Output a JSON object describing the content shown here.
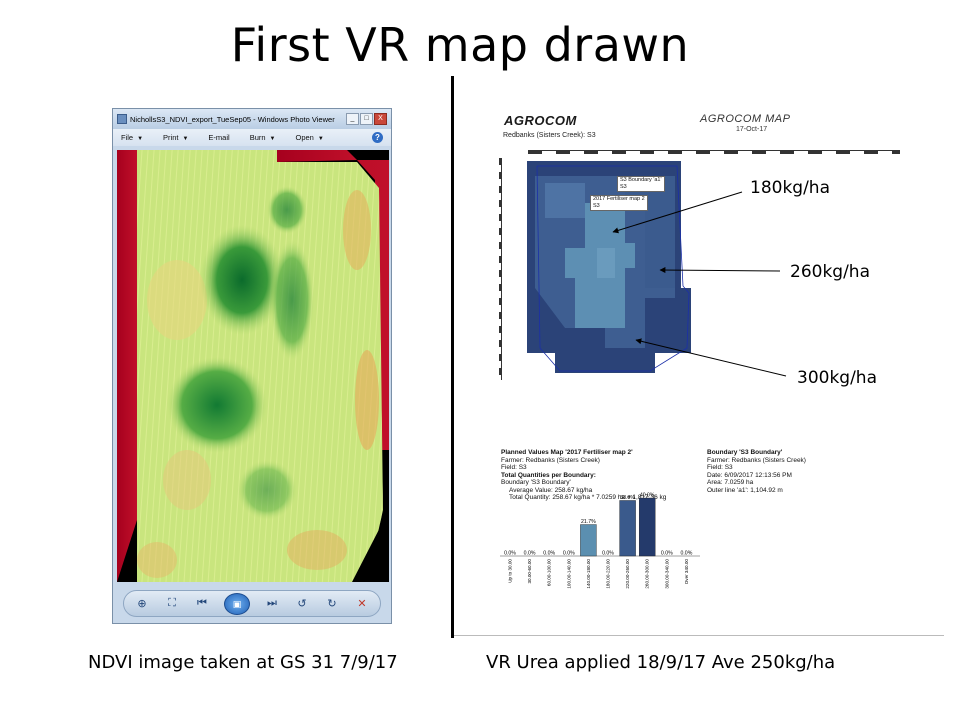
{
  "slide": {
    "title": "First VR map drawn",
    "caption_left": "NDVI image taken at GS 31  7/9/17",
    "caption_right": "VR Urea applied 18/9/17 Ave 250kg/ha"
  },
  "viewer": {
    "window_title": "NichollsS3_NDVI_export_TueSep05 - Windows Photo Viewer",
    "window_buttons": [
      "_",
      "□",
      "X"
    ],
    "menu": [
      {
        "label": "File",
        "has_arrow": true
      },
      {
        "label": "Print",
        "has_arrow": true
      },
      {
        "label": "E-mail",
        "has_arrow": false
      },
      {
        "label": "Burn",
        "has_arrow": true
      },
      {
        "label": "Open",
        "has_arrow": true
      }
    ],
    "help_label": "?",
    "controls": [
      "zoom-icon",
      "fit-icon",
      "previous-icon",
      "slideshow-icon",
      "next-icon",
      "rotate-left-icon",
      "rotate-right-icon",
      "delete-icon"
    ]
  },
  "agrocom": {
    "logo": "AGROCOM",
    "map_title": "AGROCOM MAP",
    "date": "17-Oct-17",
    "field_line": "Redbanks (Sisters Creek): S3",
    "tag_boundary": "S3 Boundary 'a1'",
    "tag_boundary_sub": "S3",
    "tag_fert": "2017 Fertiliser map 2",
    "tag_fert_sub": "S3",
    "colors": {
      "low": "#5b8fb0",
      "mid": "#3a5a8c",
      "high": "#243a6b",
      "bg": "#ffffff"
    }
  },
  "rates": {
    "r180": "180kg/ha",
    "r260": "260kg/ha",
    "r300": "300kg/ha"
  },
  "planned_values": {
    "title": "Planned Values Map '2017 Fertiliser map 2'",
    "farmer": "Farmer: Redbanks (Sisters Creek)",
    "field": "Field: S3",
    "totals_head": "Total Quantities per Boundary:",
    "boundary_line": "Boundary 'S3 Boundary'",
    "average": "Average Value: 258.67 kg/ha",
    "total": "Total Quantity: 258.67 kg/ha * 7.0259 ha = 1,817.36 kg"
  },
  "boundary_info": {
    "title": "Boundary 'S3 Boundary'",
    "farmer": "Farmer: Redbanks (Sisters Creek)",
    "field": "Field: S3",
    "date": "Date: 6/09/2017 12:13:56 PM",
    "area": "Area: 7.0259 ha",
    "outer": "Outer line 'a1': 1,104.92 m"
  },
  "chart_data": {
    "type": "bar",
    "categories": [
      "Up to 30.00",
      "30.00-60.00",
      "60.00-100.00",
      "100.00-140.00",
      "140.00-180.00",
      "180.00-220.00",
      "220.00-260.00",
      "260.00-300.00",
      "300.00-340.00",
      "Over 340.00"
    ],
    "values": [
      0.0,
      0.0,
      0.0,
      0.0,
      21.7,
      0.0,
      38.3,
      40.0,
      0.0,
      0.0
    ],
    "value_labels": [
      "0.0%",
      "0.0%",
      "0.0%",
      "0.0%",
      "21.7%",
      "0.0%",
      "38.3%",
      "40.0%",
      "0.0%",
      "0.0%"
    ],
    "colors": [
      "#5b8fb0",
      "#5b8fb0",
      "#5b8fb0",
      "#5b8fb0",
      "#5b8fb0",
      "#5b8fb0",
      "#3a5a8c",
      "#243a6b",
      "#243a6b",
      "#243a6b"
    ],
    "ylim": [
      0,
      40
    ],
    "grid": false
  }
}
